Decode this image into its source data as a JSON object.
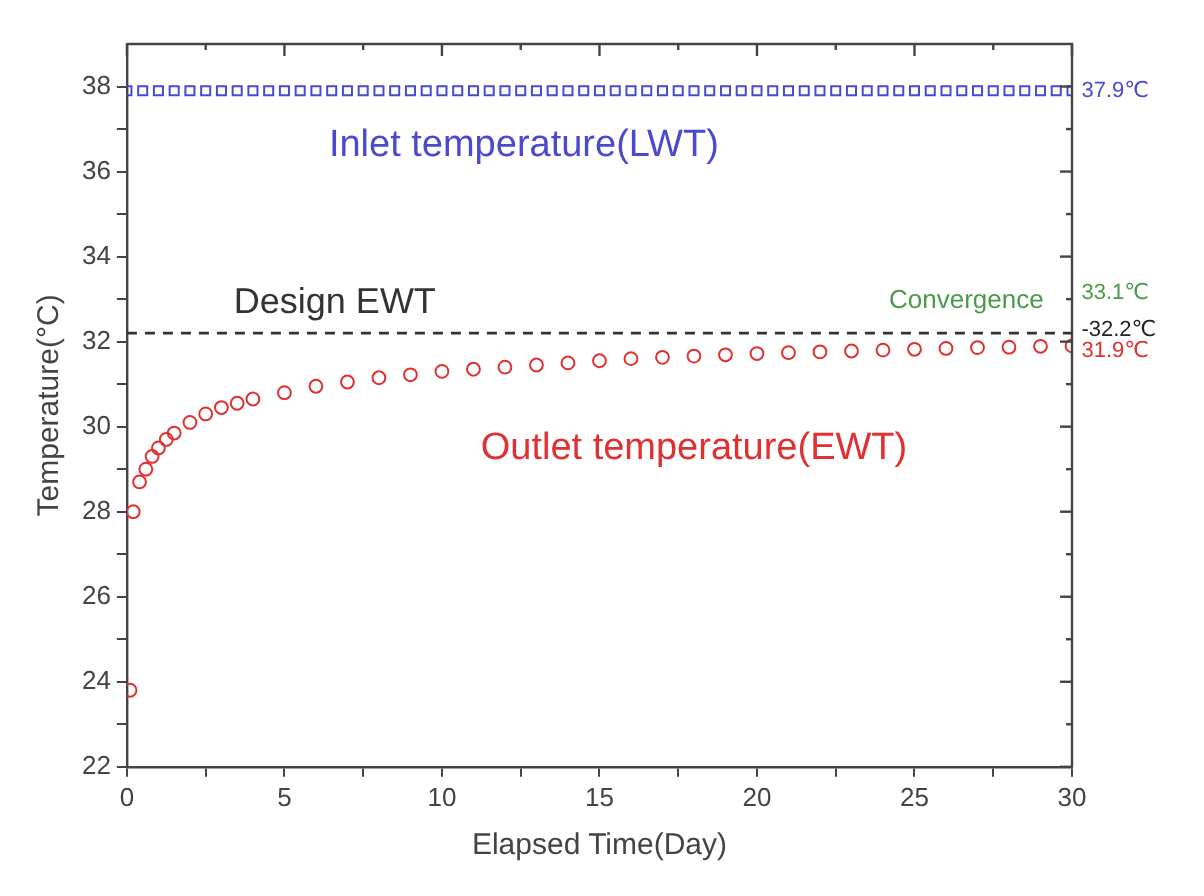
{
  "chart_data": {
    "type": "scatter",
    "xlabel": "Elapsed Time(Day)",
    "ylabel": "Temperature(°C)",
    "xlim": [
      0,
      30
    ],
    "xticks": [
      0,
      {
        "value": 2.5,
        "label": null
      },
      5,
      {
        "value": 7.5,
        "label": null
      },
      10,
      {
        "value": 12.5,
        "label": null
      },
      15,
      {
        "value": 17.5,
        "label": null
      },
      20,
      {
        "value": 22.5,
        "label": null
      },
      25,
      {
        "value": 27.5,
        "label": null
      },
      30
    ],
    "ylim": [
      22,
      39
    ],
    "yticks": [
      22,
      {
        "value": 23,
        "label": null
      },
      24,
      {
        "value": 25,
        "label": null
      },
      26,
      {
        "value": 27,
        "label": null
      },
      28,
      {
        "value": 29,
        "label": null
      },
      30,
      {
        "value": 31,
        "label": null
      },
      32,
      {
        "value": 33,
        "label": null
      },
      34,
      {
        "value": 35,
        "label": null
      },
      36,
      {
        "value": 37,
        "label": null
      },
      38
    ],
    "grid": false,
    "legend": false,
    "series": [
      {
        "name": "Inlet temperature(LWT)",
        "color": "#4a4ad0",
        "marker": "square",
        "x": [
          0,
          0.5,
          1,
          1.5,
          2,
          2.5,
          3,
          3.5,
          4,
          4.5,
          5,
          5.5,
          6,
          6.5,
          7,
          7.5,
          8,
          8.5,
          9,
          9.5,
          10,
          10.5,
          11,
          11.5,
          12,
          12.5,
          13,
          13.5,
          14,
          14.5,
          15,
          15.5,
          16,
          16.5,
          17,
          17.5,
          18,
          18.5,
          19,
          19.5,
          20,
          20.5,
          21,
          21.5,
          22,
          22.5,
          23,
          23.5,
          24,
          24.5,
          25,
          25.5,
          26,
          26.5,
          27,
          27.5,
          28,
          28.5,
          29,
          29.5,
          30
        ],
        "values": [
          37.9,
          37.9,
          37.9,
          37.9,
          37.9,
          37.9,
          37.9,
          37.9,
          37.9,
          37.9,
          37.9,
          37.9,
          37.9,
          37.9,
          37.9,
          37.9,
          37.9,
          37.9,
          37.9,
          37.9,
          37.9,
          37.9,
          37.9,
          37.9,
          37.9,
          37.9,
          37.9,
          37.9,
          37.9,
          37.9,
          37.9,
          37.9,
          37.9,
          37.9,
          37.9,
          37.9,
          37.9,
          37.9,
          37.9,
          37.9,
          37.9,
          37.9,
          37.9,
          37.9,
          37.9,
          37.9,
          37.9,
          37.9,
          37.9,
          37.9,
          37.9,
          37.9,
          37.9,
          37.9,
          37.9,
          37.9,
          37.9,
          37.9,
          37.9,
          37.9,
          37.9
        ]
      },
      {
        "name": "Outlet temperature(EWT)",
        "color": "#e03030",
        "marker": "circle",
        "x": [
          0.1,
          0.2,
          0.4,
          0.6,
          0.8,
          1,
          1.25,
          1.5,
          2,
          2.5,
          3,
          3.5,
          4,
          5,
          6,
          7,
          8,
          9,
          10,
          11,
          12,
          13,
          14,
          15,
          16,
          17,
          18,
          19,
          20,
          21,
          22,
          23,
          24,
          25,
          26,
          27,
          28,
          29,
          30
        ],
        "values": [
          23.8,
          28.0,
          28.7,
          29.0,
          29.3,
          29.5,
          29.7,
          29.85,
          30.1,
          30.3,
          30.45,
          30.55,
          30.65,
          30.8,
          30.95,
          31.05,
          31.15,
          31.22,
          31.3,
          31.35,
          31.4,
          31.45,
          31.5,
          31.55,
          31.6,
          31.63,
          31.66,
          31.69,
          31.72,
          31.74,
          31.76,
          31.78,
          31.8,
          31.82,
          31.84,
          31.86,
          31.87,
          31.89,
          31.9
        ]
      }
    ],
    "ref_lines": [
      {
        "axis": "y",
        "value": 32.2,
        "label": "Design EWT",
        "color": "#333333",
        "line_style": "dashed"
      }
    ],
    "annotations": [
      "37.9℃",
      "Convergence",
      "33.1℃",
      "-32.2℃",
      "31.9℃"
    ]
  }
}
